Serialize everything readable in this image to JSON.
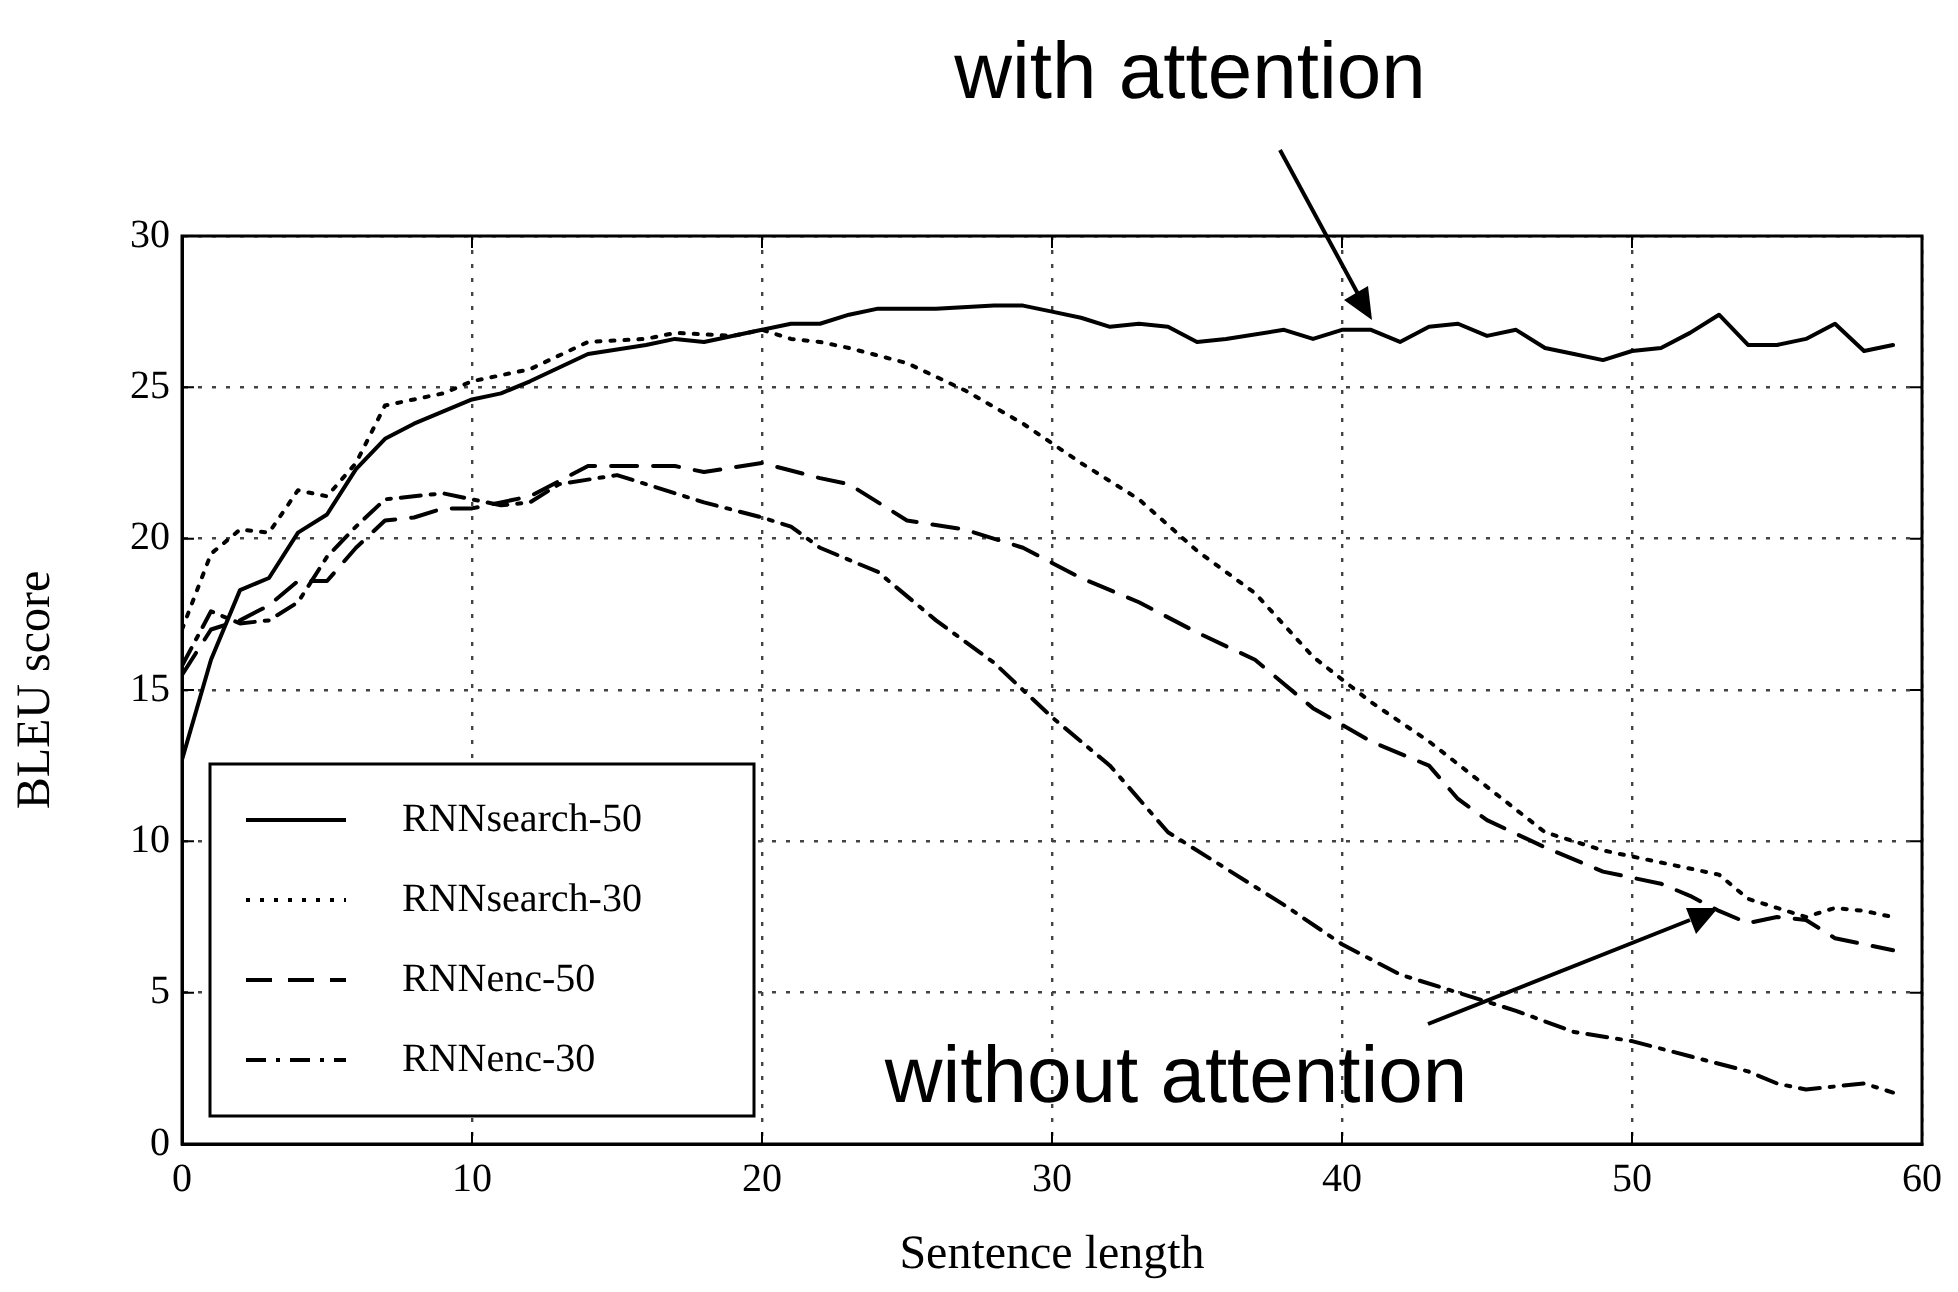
{
  "chart_data": {
    "type": "line",
    "xlabel": "Sentence length",
    "ylabel": "BLEU score",
    "xlim": [
      0,
      60
    ],
    "xticks": [
      0,
      10,
      20,
      30,
      40,
      50,
      60
    ],
    "ylim": [
      0,
      30
    ],
    "yticks": [
      0,
      5,
      10,
      15,
      20,
      25,
      30
    ],
    "grid": true,
    "legend": "bottom left",
    "marker": "none",
    "annotations": [
      "with attention",
      "without attention"
    ],
    "series": [
      {
        "name": "RNNsearch-50",
        "color": "#000000",
        "line_style": "solid",
        "x": [
          0,
          1,
          2,
          3,
          4,
          5,
          6,
          7,
          8,
          10,
          11,
          12,
          14,
          16,
          17,
          18,
          20,
          21,
          22,
          23,
          24,
          26,
          28,
          29,
          30,
          31,
          32,
          33,
          34,
          35,
          36,
          38,
          39,
          40,
          41,
          42,
          43,
          44,
          45,
          46,
          47,
          48,
          49,
          50,
          51,
          52,
          53,
          54,
          55,
          56,
          57,
          58,
          59
        ],
        "values": [
          12.7,
          16,
          18.3,
          18.7,
          20.2,
          20.8,
          22.3,
          23.3,
          23.8,
          24.6,
          24.8,
          25.2,
          26.1,
          26.4,
          26.6,
          26.5,
          26.9,
          27.1,
          27.1,
          27.4,
          27.6,
          27.6,
          27.7,
          27.7,
          27.5,
          27.3,
          27.0,
          27.1,
          27.0,
          26.5,
          26.6,
          26.9,
          26.6,
          26.9,
          26.9,
          26.5,
          27.0,
          27.1,
          26.7,
          26.9,
          26.3,
          26.1,
          25.9,
          26.2,
          26.3,
          26.8,
          27.4,
          26.4,
          26.4,
          26.6,
          27.1,
          26.2,
          26.4
        ]
      },
      {
        "name": "RNNsearch-30",
        "color": "#000000",
        "line_style": "dotted",
        "x": [
          0,
          1,
          2,
          3,
          4,
          5,
          6,
          7,
          8,
          9,
          10,
          12,
          14,
          16,
          17,
          19,
          20,
          21,
          22,
          23,
          25,
          27,
          29,
          31,
          33,
          35,
          37,
          39,
          41,
          43,
          45,
          47,
          49,
          51,
          53,
          54,
          55,
          56,
          57,
          58,
          59
        ],
        "values": [
          17,
          19.5,
          20.3,
          20.2,
          21.6,
          21.4,
          22.5,
          24.4,
          24.6,
          24.8,
          25.2,
          25.6,
          26.5,
          26.6,
          26.8,
          26.7,
          26.9,
          26.6,
          26.5,
          26.3,
          25.8,
          24.9,
          23.8,
          22.5,
          21.3,
          19.6,
          18.2,
          16.1,
          14.6,
          13.3,
          11.8,
          10.3,
          9.7,
          9.3,
          8.9,
          8.1,
          7.8,
          7.5,
          7.8,
          7.7,
          7.5
        ]
      },
      {
        "name": "RNNenc-50",
        "color": "#000000",
        "line_style": "dashed",
        "x": [
          0,
          1,
          2,
          3,
          4,
          5,
          6,
          7,
          8,
          9,
          10,
          11,
          12,
          13,
          14,
          16,
          17,
          18,
          20,
          22,
          23,
          25,
          27,
          29,
          31,
          33,
          35,
          37,
          39,
          41,
          43,
          44,
          45,
          47,
          49,
          50,
          51,
          52,
          53,
          54,
          55,
          56,
          57,
          58,
          59
        ],
        "values": [
          15.5,
          17,
          17.3,
          17.8,
          18.6,
          18.6,
          19.7,
          20.6,
          20.7,
          21.0,
          21.0,
          21.2,
          21.4,
          21.9,
          22.4,
          22.4,
          22.4,
          22.2,
          22.5,
          22.0,
          21.8,
          20.6,
          20.3,
          19.7,
          18.7,
          17.9,
          16.9,
          16.0,
          14.4,
          13.3,
          12.5,
          11.4,
          10.7,
          9.8,
          9.0,
          8.8,
          8.6,
          8.2,
          7.7,
          7.3,
          7.5,
          7.4,
          6.8,
          6.6,
          6.4
        ]
      },
      {
        "name": "RNNenc-30",
        "color": "#000000",
        "line_style": "dashdot",
        "x": [
          0,
          1,
          2,
          3,
          4,
          5,
          6,
          7,
          8,
          9,
          10,
          11,
          12,
          13,
          15,
          17,
          18,
          20,
          21,
          22,
          24,
          26,
          28,
          30,
          32,
          34,
          36,
          38,
          40,
          42,
          44,
          46,
          48,
          50,
          52,
          54,
          55,
          56,
          57,
          58,
          59
        ],
        "values": [
          15.8,
          17.6,
          17.2,
          17.3,
          17.9,
          19.4,
          20.4,
          21.3,
          21.4,
          21.5,
          21.3,
          21.1,
          21.2,
          21.8,
          22.1,
          21.5,
          21.2,
          20.7,
          20.4,
          19.7,
          18.9,
          17.3,
          15.9,
          14.1,
          12.5,
          10.3,
          9.1,
          7.9,
          6.6,
          5.6,
          5.0,
          4.4,
          3.7,
          3.4,
          2.9,
          2.4,
          2.0,
          1.8,
          1.9,
          2.0,
          1.7
        ]
      }
    ]
  }
}
